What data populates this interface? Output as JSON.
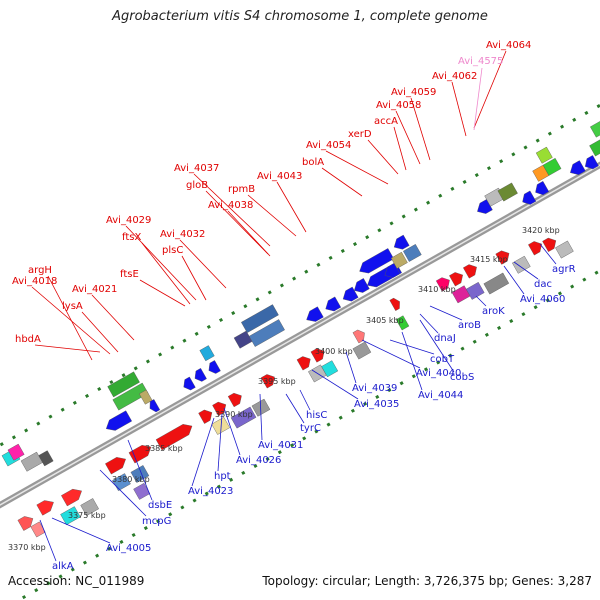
{
  "title": "Agrobacterium vitis S4 chromosome 1, complete genome",
  "footer": {
    "accession": "Accession: NC_011989",
    "summary": "Topology: circular; Length: 3,726,375 bp; Genes: 3,287"
  },
  "colors": {
    "forward_label": "#e00000",
    "reverse_label": "#1a1acc",
    "pseudo_label": "#ee88cc",
    "backbone": "#888888",
    "gc_dots": "#2a7a2a",
    "tick_text": "#333333"
  },
  "scale_ticks": [
    "3370 kbp",
    "3375 kbp",
    "3380 kbp",
    "3385 kbp",
    "3390 kbp",
    "3395 kbp",
    "3400 kbp",
    "3405 kbp",
    "3410 kbp",
    "3415 kbp",
    "3420 kbp"
  ],
  "forward_gene_labels": [
    "hbdA",
    "argH",
    "Avi_4018",
    "lysA",
    "Avi_4021",
    "ftsE",
    "ftsX",
    "Avi_4029",
    "plsC",
    "Avi_4032",
    "Avi_4038",
    "gloB",
    "Avi_4037",
    "rpmB",
    "Avi_4043",
    "bolA",
    "Avi_4054",
    "xerD",
    "accA",
    "Avi_4058",
    "Avi_4059",
    "Avi_4062",
    "Avi_4064"
  ],
  "pseudo_gene_labels": [
    "Avi_4575"
  ],
  "reverse_gene_labels": [
    "alkA",
    "Avi_4005",
    "mcpG",
    "dsbE",
    "Avi_4023",
    "hpt",
    "Avi_4026",
    "Avi_4031",
    "tyrC",
    "hisC",
    "Avi_4035",
    "Avi_4039",
    "Avi_4040",
    "Avi_4044",
    "cobT",
    "cobS",
    "dnaJ",
    "aroB",
    "aroK",
    "Avi_4060",
    "dac",
    "agrR"
  ]
}
